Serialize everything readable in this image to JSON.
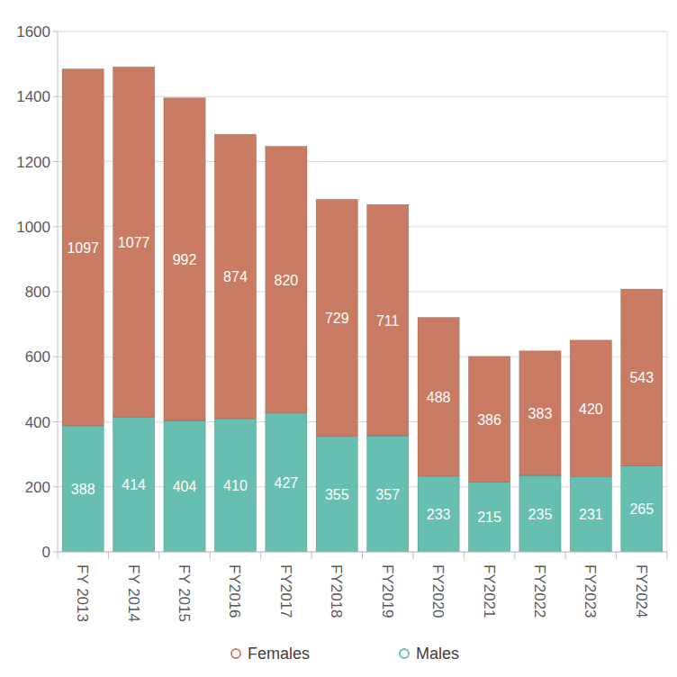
{
  "chart_data": {
    "type": "bar",
    "stacked": true,
    "data_labels": true,
    "grid": true,
    "legend": "bottom",
    "categories": [
      "FY 2013",
      "FY 2014",
      "FY 2015",
      "FY2016",
      "FY2017",
      "FY2018",
      "FY2019",
      "FY2020",
      "FY2021",
      "FY2022",
      "FY2023",
      "FY2024"
    ],
    "series": [
      {
        "name": "Females",
        "color": "#c97c63",
        "values": [
          1097,
          1077,
          992,
          874,
          820,
          729,
          711,
          488,
          386,
          383,
          420,
          543
        ]
      },
      {
        "name": "Males",
        "color": "#66bfb1",
        "values": [
          388,
          414,
          404,
          410,
          427,
          355,
          357,
          233,
          215,
          235,
          231,
          265
        ]
      }
    ],
    "ylim": [
      0,
      1600
    ],
    "yticks": [
      0,
      200,
      400,
      600,
      800,
      1000,
      1200,
      1400,
      1600
    ]
  }
}
